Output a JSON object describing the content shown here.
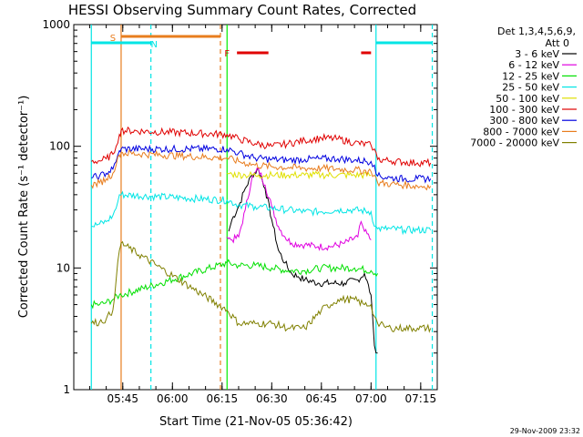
{
  "chart_data": {
    "type": "line",
    "title": "HESSI Observing Summary Count Rates, Corrected",
    "xlabel": "Start Time (21-Nov-05 05:36:42)",
    "ylabel": "Corrected Count Rate (s⁻¹ detector⁻¹)",
    "yscale": "log",
    "ylim": [
      1,
      1000
    ],
    "xlim_minutes": [
      5.0,
      103.0
    ],
    "x_ticks": [
      {
        "minute": 45,
        "label": "05:45"
      },
      {
        "minute": 60,
        "label": "06:00"
      },
      {
        "minute": 75,
        "label": "06:15"
      },
      {
        "minute": 90,
        "label": "06:30"
      },
      {
        "minute": 105,
        "label": "06:45"
      },
      {
        "minute": 120,
        "label": "07:00"
      },
      {
        "minute": 135,
        "label": "07:15"
      }
    ],
    "y_ticks": [
      {
        "value": 1,
        "label": "1"
      },
      {
        "value": 10,
        "label": "10"
      },
      {
        "value": 100,
        "label": "100"
      },
      {
        "value": 1000,
        "label": "1000"
      }
    ],
    "legend_title_1": "Det 1,3,4,5,6,9,",
    "legend_title_2": "Att 0",
    "legend_position": "right",
    "footer_date": "29-Nov-2009 23:32",
    "flags": [
      {
        "label": "S",
        "color": "#e87d1e",
        "start": 44.5,
        "end": 74.5
      },
      {
        "label": "N",
        "color": "#00e5e5",
        "start": 35.5,
        "end": 53.5
      },
      {
        "label": "N2",
        "color": "#00e5e5",
        "start": 121.5,
        "end": 138.5
      },
      {
        "label": "F",
        "color": "#e00000",
        "start": 79.5,
        "end": 89.0
      },
      {
        "label": "F2",
        "color": "#e00000",
        "start": 117.0,
        "end": 120.0
      }
    ],
    "flag_labels": [
      {
        "text": "S",
        "color": "#e87d1e",
        "minute": 42.0
      },
      {
        "text": "N",
        "color": "#00e5e5",
        "minute": 54.5
      },
      {
        "text": "F",
        "color": "#e00000",
        "minute": 76.5
      }
    ],
    "vlines": [
      {
        "minute": 35.5,
        "color": "#00e5e5",
        "dash": false
      },
      {
        "minute": 44.5,
        "color": "#e87d1e",
        "dash": false
      },
      {
        "minute": 53.5,
        "color": "#00e5e5",
        "dash": true
      },
      {
        "minute": 74.5,
        "color": "#e87d1e",
        "dash": true
      },
      {
        "minute": 76.5,
        "color": "#00ee00",
        "dash": false
      },
      {
        "minute": 121.5,
        "color": "#00e5e5",
        "dash": false
      },
      {
        "minute": 138.5,
        "color": "#00e5e5",
        "dash": true
      }
    ],
    "series": [
      {
        "name": "3 - 6 keV",
        "color": "#000000",
        "x": [
          35.5,
          44,
          44.5,
          76.5,
          77,
          78,
          80,
          82,
          84,
          86,
          88,
          90,
          92,
          94,
          96,
          98,
          100,
          104,
          108,
          112,
          116,
          118,
          120,
          121,
          122,
          123,
          125,
          130,
          138
        ],
        "y": [
          null,
          null,
          null,
          null,
          20,
          25,
          32,
          45,
          58,
          65,
          45,
          25,
          14,
          11,
          9,
          8.5,
          8,
          7.5,
          7.5,
          7.5,
          8,
          9,
          6,
          2.3,
          2.0,
          null,
          null,
          null,
          null
        ]
      },
      {
        "name": "6 - 12 keV",
        "color": "#e000e0",
        "x": [
          76.5,
          78,
          80,
          82,
          84,
          86,
          88,
          90,
          92,
          94,
          96,
          100,
          104,
          108,
          112,
          116,
          117,
          118,
          120
        ],
        "y": [
          18,
          17,
          18,
          30,
          55,
          65,
          48,
          32,
          22,
          18,
          16,
          15.5,
          15,
          15,
          16,
          18,
          24,
          20,
          17
        ]
      },
      {
        "name": "12 - 25 keV",
        "color": "#00e000",
        "x": [
          35.5,
          38,
          40,
          42,
          44,
          44.5,
          76.5,
          80,
          85,
          90,
          95,
          100,
          105,
          110,
          115,
          120,
          122,
          124,
          126,
          130,
          134,
          138
        ],
        "y": [
          5,
          5,
          5.2,
          5.5,
          6,
          6,
          11,
          10.5,
          10.5,
          10,
          9.5,
          9.5,
          10,
          10,
          10,
          9.5,
          9,
          null,
          null,
          null,
          null,
          null
        ]
      },
      {
        "name": "25 - 50 keV",
        "color": "#00e5e5",
        "x": [
          35.5,
          38,
          40,
          42,
          43,
          44,
          44.5,
          76.5,
          80,
          85,
          90,
          95,
          100,
          105,
          110,
          115,
          120,
          121,
          122,
          124,
          126,
          130,
          134,
          138
        ],
        "y": [
          22,
          23,
          24,
          27,
          31,
          40,
          40,
          36,
          33,
          32,
          31,
          30,
          29,
          29,
          30,
          30,
          29,
          22,
          21,
          21,
          21,
          20.5,
          20.5,
          20.5
        ]
      },
      {
        "name": "50 - 100 keV",
        "color": "#e0e000",
        "x": [
          76.5,
          78,
          82,
          86,
          90,
          95,
          100,
          105,
          110,
          115,
          120
        ],
        "y": [
          60,
          59,
          58,
          58,
          58,
          58,
          58,
          58,
          58,
          58,
          58
        ]
      },
      {
        "name": "100 - 300 keV",
        "color": "#e00000",
        "x": [
          35.5,
          38,
          40,
          42,
          43,
          44,
          44.5,
          76.5,
          80,
          85,
          90,
          95,
          100,
          105,
          110,
          115,
          120,
          121,
          122,
          126,
          130,
          134,
          138
        ],
        "y": [
          75,
          76,
          79,
          86,
          100,
          125,
          135,
          125,
          115,
          105,
          100,
          105,
          112,
          117,
          115,
          107,
          102,
          95,
          78,
          76,
          74,
          73,
          73
        ]
      },
      {
        "name": "300 - 800 keV",
        "color": "#0000e0",
        "x": [
          35.5,
          38,
          40,
          42,
          43,
          44,
          44.5,
          76.5,
          80,
          85,
          90,
          95,
          100,
          105,
          110,
          115,
          120,
          121,
          122,
          126,
          130,
          134,
          138
        ],
        "y": [
          55,
          57,
          60,
          65,
          75,
          92,
          95,
          95,
          88,
          80,
          78,
          77,
          78,
          79,
          79,
          77,
          75,
          70,
          57,
          55,
          54,
          54,
          54
        ]
      },
      {
        "name": "800 - 7000 keV",
        "color": "#e87d1e",
        "x": [
          35.5,
          38,
          40,
          42,
          43,
          44,
          44.5,
          76.5,
          80,
          85,
          90,
          95,
          100,
          105,
          110,
          115,
          120,
          121,
          122,
          126,
          130,
          134,
          138
        ],
        "y": [
          48,
          50,
          54,
          60,
          70,
          85,
          88,
          80,
          75,
          70,
          68,
          67,
          66,
          66,
          65,
          64,
          62,
          58,
          50,
          49,
          48,
          47,
          47
        ]
      },
      {
        "name": "7000 - 20000 keV",
        "color": "#808000",
        "x": [
          35.5,
          38,
          40,
          42,
          43,
          44,
          44.5,
          76.5,
          80,
          85,
          90,
          95,
          100,
          105,
          110,
          115,
          118,
          120,
          121,
          122,
          124,
          126,
          130,
          134,
          138
        ],
        "y": [
          3.5,
          3.6,
          3.8,
          4.5,
          8,
          14,
          16,
          4.5,
          3.5,
          3.5,
          3.5,
          3.2,
          3.2,
          4.5,
          5.5,
          5.5,
          5,
          5,
          4,
          3.5,
          3.3,
          3.2,
          3.2,
          3.2,
          3.2
        ]
      }
    ]
  }
}
